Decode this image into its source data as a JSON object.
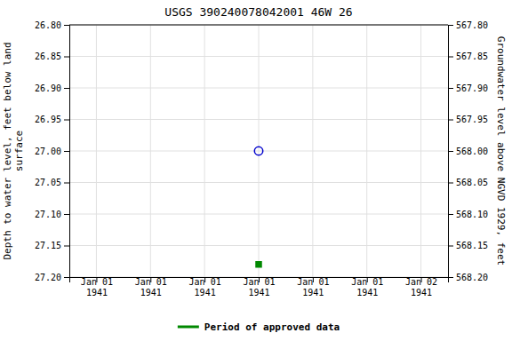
{
  "chart_data": {
    "type": "scatter",
    "title": "USGS 390240078042001 46W 26",
    "categories": [
      "Jan 01\n1941",
      "Jan 01\n1941",
      "Jan 01\n1941",
      "Jan 01\n1941",
      "Jan 01\n1941",
      "Jan 01\n1941",
      "Jan 02\n1941"
    ],
    "series": [
      {
        "color": "#0000cc",
        "marker": "circle",
        "values": [
          null,
          null,
          null,
          27,
          null,
          null,
          null
        ]
      },
      {
        "name": "Period of approved data",
        "color": "#008800",
        "marker": "square",
        "values": [
          null,
          null,
          null,
          27.18,
          null,
          null,
          null
        ]
      }
    ],
    "y_label": "Depth to water level, feet below land\nsurface",
    "y2_label": "Groundwater level above NGVD 1929, feet",
    "ylim": [
      27.2,
      26.8
    ],
    "yticks": [
      {
        "value": 26.8,
        "label": "26.80"
      },
      26.85,
      {
        "value": 26.9,
        "label": "26.90"
      },
      26.95,
      {
        "value": 27,
        "label": "27.00"
      },
      27.05,
      {
        "value": 27.1,
        "label": "27.10"
      },
      27.15,
      {
        "value": 27.2,
        "label": "27.20"
      }
    ],
    "y2lim": [
      568.2,
      567.8
    ],
    "y2ticks": [
      {
        "value": 568.2,
        "label": "568.20"
      },
      568.15,
      {
        "value": 568.1,
        "label": "568.10"
      },
      568.05,
      {
        "value": 568,
        "label": "568.00"
      },
      567.95,
      {
        "value": 567.9,
        "label": "567.90"
      },
      567.85,
      {
        "value": 567.8,
        "label": "567.80"
      }
    ],
    "grid": true,
    "legend": "bottom"
  }
}
